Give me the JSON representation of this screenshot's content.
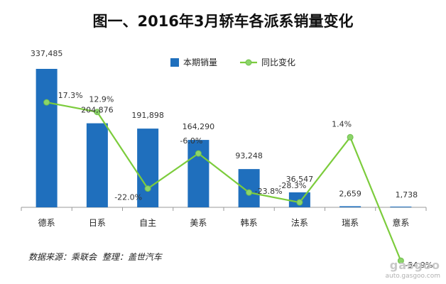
{
  "chart_data": {
    "type": "bar",
    "title": "图一、2016年3月轿车各派系销量变化",
    "categories": [
      "德系",
      "日系",
      "自主",
      "美系",
      "韩系",
      "法系",
      "瑞系",
      "意系"
    ],
    "series": [
      {
        "name": "本期销量",
        "type": "bar",
        "color": "#1f6fbd",
        "values": [
          337485,
          204876,
          191898,
          164290,
          93248,
          36547,
          2659,
          1738
        ],
        "labels": [
          "337,485",
          "204,876",
          "191,898",
          "164,290",
          "93,248",
          "36,547",
          "2,659",
          "1,738"
        ]
      },
      {
        "name": "同比变化",
        "type": "line",
        "color": "#7ccc3c",
        "marker_color": "#8cd46a",
        "values": [
          17.3,
          12.9,
          -22.0,
          -6.0,
          -23.8,
          -28.3,
          1.4,
          -54.9
        ],
        "labels": [
          "17.3%",
          "12.9%",
          "-22.0%",
          "-6.0%",
          "-23.8%",
          "-28.3%",
          "1.4%",
          "-54.9%"
        ]
      }
    ],
    "legend_position": "top-center",
    "grid": false
  },
  "source": {
    "label": "数据来源：乘联会",
    "note": "整理：盖世汽车"
  },
  "watermark": {
    "logo": "gasgoo",
    "url": "auto.gasgoo.com"
  }
}
